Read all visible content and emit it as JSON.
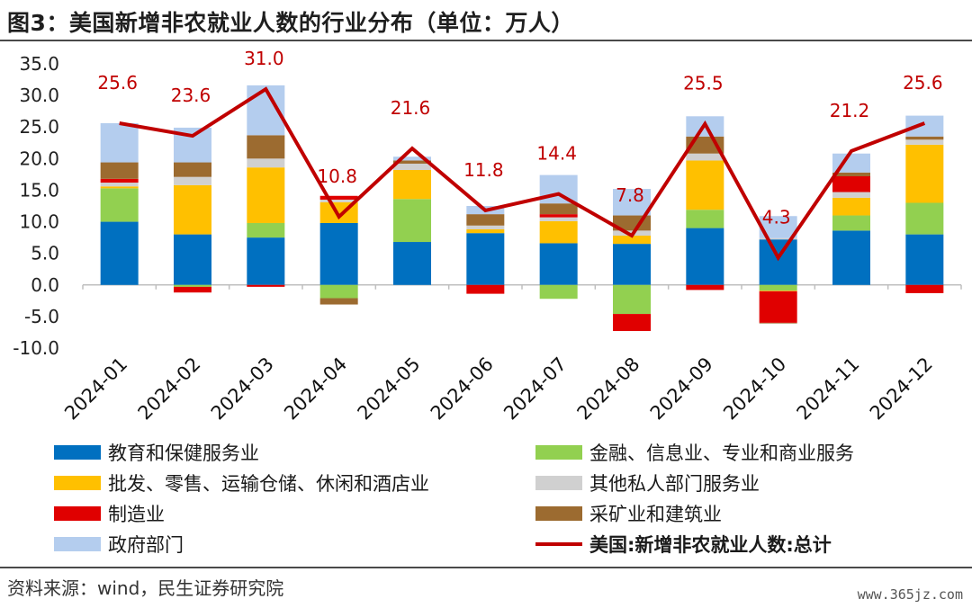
{
  "title": "图3：美国新增非农就业人数的行业分布（单位：万人）",
  "source": "资料来源：wind，民生证券研究院",
  "watermark": "www.365jz.com",
  "chart_data": {
    "type": "bar",
    "stacked": true,
    "categories": [
      "2024-01",
      "2024-02",
      "2024-03",
      "2024-04",
      "2024-05",
      "2024-06",
      "2024-07",
      "2024-08",
      "2024-09",
      "2024-10",
      "2024-11",
      "2024-12"
    ],
    "ylim": [
      -10,
      35
    ],
    "yticks": [
      "35.0",
      "30.0",
      "25.0",
      "20.0",
      "15.0",
      "10.0",
      "5.0",
      "0.0",
      "-5.0",
      "-10.0"
    ],
    "series": [
      {
        "name": "教育和保健服务业",
        "color": "#0070c0",
        "values": [
          10.0,
          8.0,
          7.5,
          9.8,
          6.8,
          8.2,
          6.6,
          6.5,
          9.0,
          7.2,
          8.6,
          8.0
        ]
      },
      {
        "name": "金融、信息业、专业和商业服务",
        "color": "#92d050",
        "values": [
          5.3,
          -0.3,
          2.3,
          -2.1,
          6.8,
          0.0,
          -2.2,
          -4.6,
          2.9,
          -0.9,
          2.4,
          5.0
        ]
      },
      {
        "name": "批发、零售、运输仓储、休闲和酒店业",
        "color": "#ffc000",
        "values": [
          0.3,
          7.8,
          8.8,
          3.3,
          4.6,
          0.6,
          3.5,
          1.3,
          7.8,
          -0.1,
          2.8,
          9.2
        ]
      },
      {
        "name": "其他私人部门服务业",
        "color": "#d0d0d0",
        "values": [
          0.6,
          1.3,
          1.4,
          0.4,
          1.0,
          0.6,
          0.6,
          0.8,
          1.1,
          0.2,
          0.9,
          0.8
        ]
      },
      {
        "name": "制造业",
        "color": "#e00000",
        "values": [
          0.6,
          -0.9,
          -0.3,
          0.6,
          0.0,
          -1.4,
          0.5,
          -2.7,
          -0.8,
          -5.0,
          2.5,
          -1.3
        ]
      },
      {
        "name": "采矿业和建筑业",
        "color": "#9c6b30",
        "values": [
          2.6,
          2.3,
          3.7,
          -1.0,
          0.5,
          1.8,
          1.7,
          2.4,
          2.7,
          -0.1,
          0.6,
          0.5
        ]
      },
      {
        "name": "政府部门",
        "color": "#b4cdee",
        "values": [
          6.2,
          5.5,
          7.9,
          0.0,
          0.6,
          1.3,
          4.5,
          4.2,
          3.2,
          3.5,
          3.0,
          3.3
        ]
      }
    ],
    "total": {
      "name": "美国:新增非农就业人数:总计",
      "color": "#c00000",
      "values": [
        25.6,
        23.6,
        31.0,
        10.8,
        21.6,
        11.8,
        14.4,
        7.8,
        25.5,
        4.3,
        21.2,
        25.6
      ],
      "labels": [
        "25.6",
        "23.6",
        "31.0",
        "10.8",
        "21.6",
        "11.8",
        "14.4",
        "7.8",
        "25.5",
        "4.3",
        "21.2",
        "25.6"
      ]
    },
    "legend_position": "bottom",
    "grid": false
  }
}
